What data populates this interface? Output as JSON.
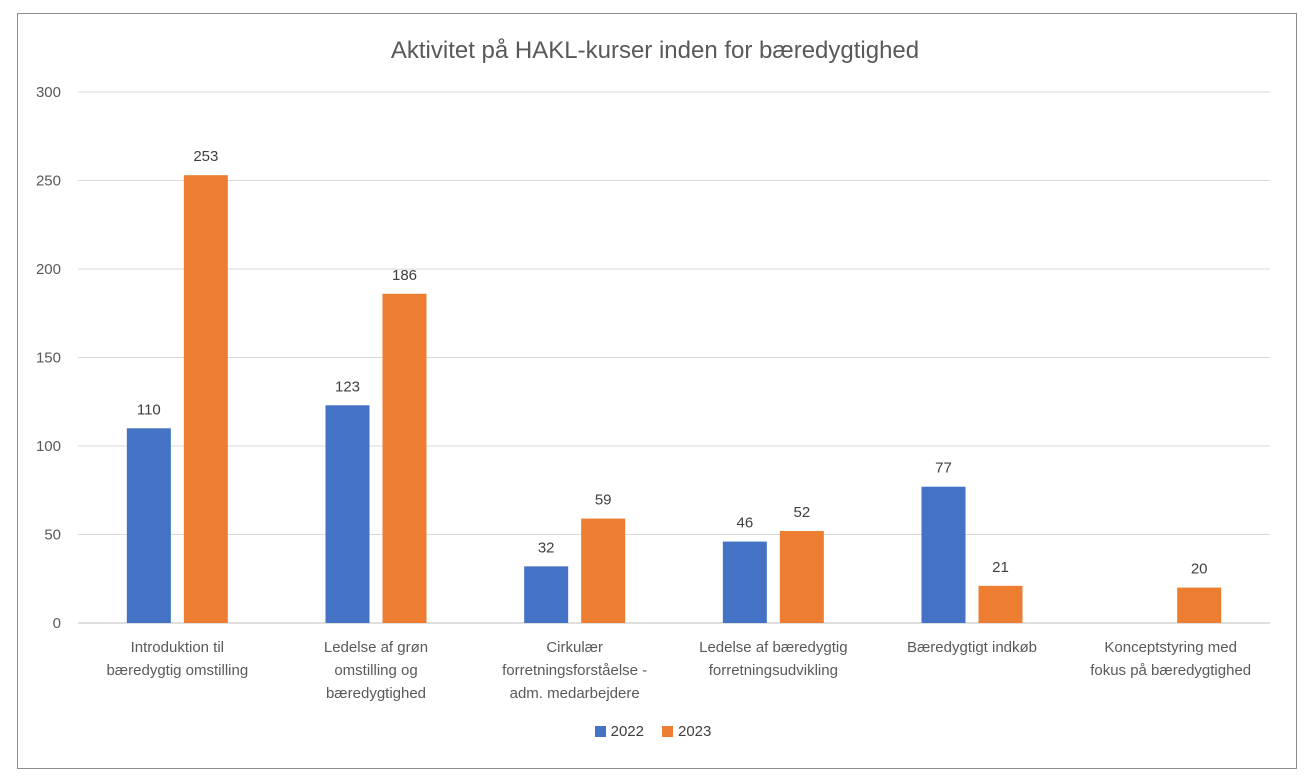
{
  "chart_data": {
    "type": "bar",
    "title": "Aktivitet på HAKL-kurser inden for bæredygtighed",
    "categories": [
      [
        "Introduktion til",
        "bæredygtig omstilling"
      ],
      [
        "Ledelse af grøn",
        "omstilling og",
        "bæredygtighed"
      ],
      [
        "Cirkulær",
        "forretningsforståelse -",
        "adm. medarbejdere"
      ],
      [
        "Ledelse af bæredygtig",
        "forretningsudvikling"
      ],
      [
        "Bæredygtigt indkøb"
      ],
      [
        "Konceptstyring med",
        "fokus på bæredygtighed"
      ]
    ],
    "series": [
      {
        "name": "2022",
        "color": "#4472C4",
        "values": [
          110,
          123,
          32,
          46,
          77,
          null
        ]
      },
      {
        "name": "2023",
        "color": "#ED7D31",
        "values": [
          253,
          186,
          59,
          52,
          21,
          20
        ]
      }
    ],
    "ylim": [
      0,
      300
    ],
    "yticks": [
      "0",
      "50",
      "100",
      "150",
      "200",
      "250",
      "300"
    ],
    "grid": true,
    "legend_position": "bottom"
  }
}
